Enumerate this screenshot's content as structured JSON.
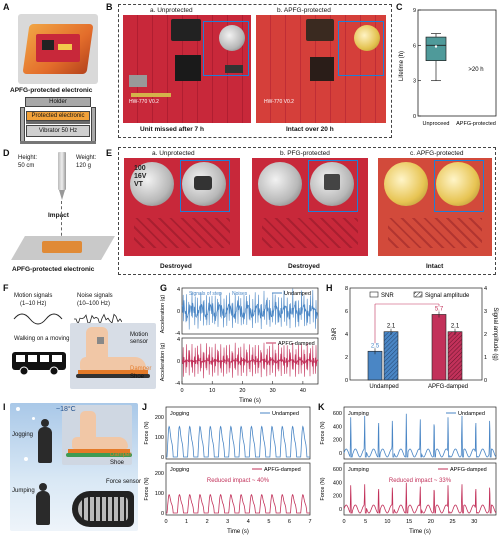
{
  "panels": {
    "A": {
      "letter": "A",
      "title": "APFG-protected electronic",
      "stack": [
        "Holder",
        "Protected electronic",
        "Vibrator 50 Hz"
      ]
    },
    "B": {
      "letter": "B",
      "left_title": "a. Unprotected",
      "right_title": "b. APFG-protected",
      "left_caption": "Unit missed after 7 h",
      "right_caption": "Intact over 20 h",
      "board_label": "HW-770 V0.2"
    },
    "C": {
      "letter": "C",
      "ylabel": "Lifetime (h)",
      "yticks": [
        "0",
        "3",
        "6",
        "9"
      ],
      "xlabels": [
        "Unproceed",
        "APFG-protected"
      ],
      "annotation": ">20 h"
    },
    "D": {
      "letter": "D",
      "height_label": "Height:",
      "height_value": "50 cm",
      "weight_label": "Weight:",
      "weight_value": "120 g",
      "impact": "Impact",
      "title": "APFG-protected electronic"
    },
    "E": {
      "letter": "E",
      "titles": [
        "a. Unprotected",
        "b. PFG-protected",
        "c. APFG-protected"
      ],
      "captions": [
        "Destroyed",
        "Destroyed",
        "Intact"
      ],
      "cap_text": [
        "100",
        "16V",
        "VT"
      ]
    },
    "F": {
      "letter": "F",
      "motion_title": "Motion signals",
      "motion_range": "(1–10 Hz)",
      "noise_title": "Noise signals",
      "noise_range": "(10–100 Hz)",
      "bus_text": "Walking on a moving bus",
      "motion_sensor": "Motion sensor",
      "damper": "Damper",
      "shoe": "Shoe"
    },
    "G": {
      "letter": "G",
      "ylabel": "Acceleration (g)",
      "xlabel": "Time (s)",
      "legend_top": "Undamped",
      "legend_bottom": "APFG-damped",
      "anno_step": "Signals of step",
      "anno_noise": "Noises"
    },
    "H": {
      "letter": "H",
      "legend_snr": "SNR",
      "legend_amp": "Signal amplitude",
      "ylabel_left": "SNR",
      "ylabel_right": "Signal amplitude (g)"
    },
    "I": {
      "letter": "I",
      "temp": "~18°C",
      "jogging": "Jogging",
      "jumping": "Jumping",
      "damper": "Damper",
      "shoe": "Shoe",
      "force_sensor": "Force sensor"
    },
    "J": {
      "letter": "J",
      "ylabel": "Force (N)",
      "xlabel": "Time (s)",
      "top_label": "Jogging",
      "top_legend": "Undamped",
      "bottom_label": "Jogging",
      "bottom_legend": "APFG-damped",
      "reduced": "Reduced impact ~ 40%"
    },
    "K": {
      "letter": "K",
      "ylabel": "Force (N)",
      "xlabel": "Time (s)",
      "top_label": "Jumping",
      "top_legend": "Undamped",
      "bottom_label": "Jumping",
      "bottom_legend": "APFG-damped",
      "reduced": "Reduced impact ~ 33%"
    }
  },
  "colors": {
    "blue": "#4a86c5",
    "crimson": "#c2315a",
    "teal": "#4f9a9a",
    "pcb": "#c8283a"
  },
  "chart_data": [
    {
      "type": "box",
      "title": "",
      "ylabel": "Lifetime (h)",
      "categories": [
        "Unproceed",
        "APFG-protected"
      ],
      "box": {
        "min": 3,
        "q1": 4.7,
        "median": 6,
        "q3": 6.7,
        "max": 7,
        "mean": 5.9
      },
      "ylim": [
        0,
        9
      ],
      "yticks": [
        0,
        3,
        6,
        9
      ]
    },
    {
      "type": "line",
      "ylabel": "Acceleration (g)",
      "xlabel": "Time (s)",
      "xlim": [
        0,
        45
      ],
      "xticks": [
        0,
        10,
        20,
        30,
        40
      ],
      "ylim": [
        -4,
        4
      ],
      "yticks": [
        -4,
        0,
        4
      ],
      "series": [
        {
          "name": "Undamped",
          "color": "#4a86c5"
        },
        {
          "name": "APFG-damped",
          "color": "#c2315a"
        }
      ]
    },
    {
      "type": "bar",
      "categories": [
        "Undamped",
        "APFG-damped"
      ],
      "series": [
        {
          "name": "SNR",
          "values": [
            2.5,
            5.7
          ]
        },
        {
          "name": "Signal amplitude",
          "values": [
            2.1,
            2.1
          ]
        }
      ],
      "ylim_left": [
        0,
        8
      ],
      "yticks_left": [
        0,
        2,
        4,
        6,
        8
      ],
      "ylim_right": [
        0,
        4
      ],
      "yticks_right": [
        0,
        1,
        2,
        3,
        4
      ]
    },
    {
      "type": "line",
      "ylabel": "Force (N)",
      "xlabel": "Time (s)",
      "xlim": [
        0,
        7
      ],
      "xticks": [
        0,
        1,
        2,
        3,
        4,
        5,
        6,
        7
      ],
      "yticks": [
        0,
        100,
        200
      ],
      "series": [
        {
          "name": "Undamped",
          "peak": 200
        },
        {
          "name": "APFG-damped",
          "peak": 120
        }
      ]
    },
    {
      "type": "line",
      "ylabel": "Force (N)",
      "xlabel": "Time (s)",
      "xlim": [
        0,
        35
      ],
      "xticks": [
        0,
        5,
        10,
        15,
        20,
        25,
        30
      ],
      "yticks": [
        0,
        200,
        400,
        600
      ],
      "series": [
        {
          "name": "Undamped",
          "peak": 600
        },
        {
          "name": "APFG-damped",
          "peak": 400
        }
      ]
    }
  ]
}
